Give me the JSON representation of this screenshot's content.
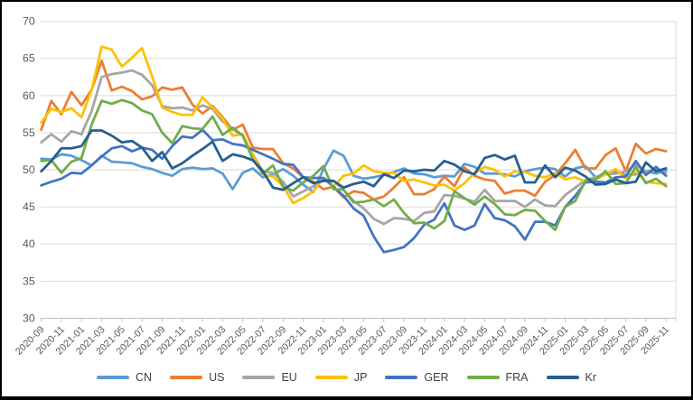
{
  "window": {
    "background_color": "#FFFFFF",
    "frame_border_color": "#000000"
  },
  "axis_style": {
    "grid_color": "#D9D9D9",
    "axis_line_color": "#BFBFBF",
    "axis_label_color": "#595959",
    "legend_text_color": "#404040"
  },
  "chart_data": {
    "type": "line",
    "title": "",
    "xlabel": "",
    "ylabel": "",
    "grid": true,
    "legend_position": "bottom",
    "y_axis": {
      "min": 30,
      "max": 70,
      "step": 5,
      "tick_labels": [
        "30",
        "35",
        "40",
        "45",
        "50",
        "55",
        "60",
        "65",
        "70"
      ]
    },
    "x": [
      "2020-09",
      "2020-10",
      "2020-11",
      "2020-12",
      "2021-01",
      "2021-02",
      "2021-03",
      "2021-04",
      "2021-05",
      "2021-06",
      "2021-07",
      "2021-08",
      "2021-09",
      "2021-10",
      "2021-11",
      "2021-12",
      "2022-01",
      "2022-02",
      "2022-03",
      "2022-04",
      "2022-05",
      "2022-06",
      "2022-07",
      "2022-08",
      "2022-09",
      "2022-10",
      "2022-11",
      "2022-12",
      "2023-01",
      "2023-02",
      "2023-03",
      "2023-04",
      "2023-05",
      "2023-06",
      "2023-07",
      "2023-08",
      "2023-09",
      "2023-10",
      "2023-11",
      "2023-12",
      "2024-01",
      "2024-02",
      "2024-03",
      "2024-04",
      "2024-05",
      "2024-06",
      "2024-07",
      "2024-08",
      "2024-09",
      "2024-10",
      "2024-11",
      "2024-12",
      "2025-01",
      "2025-02",
      "2025-03",
      "2025-04",
      "2025-05",
      "2025-06",
      "2025-07",
      "2025-08",
      "2025-09",
      "2025-10",
      "2025-11"
    ],
    "x_tick_labels": [
      "2020-09",
      "2020-11",
      "2021-01",
      "2021-03",
      "2021-05",
      "2021-07",
      "2021-09",
      "2021-11",
      "2022-01",
      "2022-03",
      "2022-05",
      "2022-07",
      "2022-09",
      "2022-11",
      "2023-01",
      "2023-03",
      "2023-05",
      "2023-07",
      "2023-09",
      "2023-11",
      "2024-01",
      "2024-03",
      "2024-05",
      "2024-07",
      "2024-09",
      "2024-11",
      "2025-01",
      "2025-03",
      "2025-05",
      "2025-07",
      "2025-09",
      "2025-11"
    ],
    "series": [
      {
        "name": "CN",
        "color": "#5B9BD5",
        "values": [
          51.5,
          51.4,
          52.1,
          51.9,
          51.3,
          50.6,
          51.9,
          51.1,
          51.0,
          50.9,
          50.4,
          50.1,
          49.6,
          49.2,
          50.1,
          50.3,
          50.1,
          50.2,
          49.5,
          47.4,
          49.6,
          50.2,
          49.0,
          49.4,
          50.1,
          49.2,
          48.0,
          47.0,
          50.1,
          52.6,
          51.9,
          49.2,
          48.8,
          49.0,
          49.3,
          49.7,
          50.2,
          49.5,
          49.4,
          49.0,
          49.2,
          49.1,
          50.8,
          50.4,
          49.5,
          49.5,
          49.4,
          49.1,
          49.8,
          50.1,
          50.3,
          50.1,
          49.1,
          50.2,
          50.5,
          49.0,
          49.5,
          49.7,
          49.3,
          49.4,
          49.8,
          49.5,
          49.9
        ]
      },
      {
        "name": "US",
        "color": "#ED7D31",
        "values": [
          55.4,
          59.3,
          57.5,
          60.5,
          58.7,
          60.8,
          64.7,
          60.7,
          61.2,
          60.6,
          59.5,
          59.9,
          61.1,
          60.8,
          61.1,
          58.8,
          57.6,
          58.6,
          57.1,
          55.4,
          56.1,
          53.0,
          52.8,
          52.8,
          50.9,
          50.2,
          49.0,
          48.4,
          47.4,
          47.7,
          46.3,
          47.1,
          46.9,
          46.0,
          46.4,
          47.6,
          49.0,
          46.7,
          46.7,
          47.4,
          49.1,
          47.8,
          50.3,
          49.2,
          48.7,
          48.5,
          46.8,
          47.2,
          47.2,
          46.5,
          48.4,
          49.3,
          50.9,
          52.7,
          50.2,
          50.2,
          52.0,
          52.9,
          49.8,
          53.5,
          52.2,
          52.8,
          52.5
        ]
      },
      {
        "name": "EU",
        "color": "#A5A5A5",
        "values": [
          53.7,
          54.8,
          53.8,
          55.2,
          54.8,
          57.9,
          62.5,
          62.9,
          63.1,
          63.4,
          62.8,
          61.4,
          58.6,
          58.3,
          58.4,
          58.0,
          58.7,
          58.2,
          56.5,
          55.5,
          54.6,
          52.1,
          49.8,
          49.6,
          48.4,
          46.4,
          47.1,
          47.8,
          48.8,
          48.5,
          47.3,
          45.8,
          44.8,
          43.4,
          42.7,
          43.5,
          43.4,
          43.1,
          44.2,
          44.4,
          46.6,
          46.5,
          46.1,
          45.7,
          47.3,
          45.8,
          45.8,
          45.8,
          45.0,
          46.0,
          45.2,
          45.1,
          46.6,
          47.6,
          48.6,
          49.0,
          49.4,
          49.5,
          49.8,
          50.7,
          49.8,
          50.0,
          49.6
        ]
      },
      {
        "name": "JP",
        "color": "#FFC000",
        "values": [
          56.4,
          58.2,
          57.8,
          58.3,
          57.1,
          60.7,
          66.6,
          66.2,
          63.9,
          65.1,
          66.4,
          62.6,
          58.4,
          57.8,
          57.4,
          57.4,
          59.8,
          58.4,
          56.9,
          54.6,
          54.8,
          52.0,
          49.3,
          49.1,
          47.8,
          45.5,
          46.2,
          47.1,
          48.9,
          47.7,
          49.2,
          49.5,
          50.6,
          49.8,
          49.6,
          49.6,
          48.5,
          48.7,
          48.3,
          47.9,
          48.0,
          47.2,
          48.2,
          49.6,
          50.4,
          50.0,
          49.1,
          49.8,
          49.7,
          49.2,
          49.0,
          49.6,
          48.7,
          49.0,
          48.4,
          48.7,
          49.4,
          50.1,
          48.9,
          49.7,
          48.4,
          48.2,
          48.1
        ]
      },
      {
        "name": "GER",
        "color": "#4472C4",
        "values": [
          47.9,
          48.4,
          48.8,
          49.6,
          49.5,
          50.6,
          51.8,
          52.9,
          53.2,
          52.5,
          53.0,
          52.7,
          51.5,
          53.2,
          54.5,
          54.3,
          55.4,
          54.0,
          54.1,
          53.5,
          53.3,
          52.7,
          52.1,
          51.5,
          50.8,
          50.7,
          49.0,
          48.9,
          48.9,
          47.7,
          46.5,
          44.8,
          43.8,
          41.0,
          38.9,
          39.2,
          39.6,
          40.8,
          42.6,
          43.3,
          45.5,
          42.5,
          41.9,
          42.5,
          45.4,
          43.5,
          43.2,
          42.4,
          40.6,
          43.0,
          43.0,
          42.5,
          45.0,
          46.5,
          48.3,
          48.4,
          48.3,
          49.0,
          49.1,
          51.2,
          49.3,
          50.4,
          49.2
        ]
      },
      {
        "name": "FRA",
        "color": "#70AD47",
        "values": [
          51.2,
          51.3,
          49.6,
          51.1,
          51.6,
          56.1,
          59.3,
          58.9,
          59.4,
          59.0,
          58.0,
          57.5,
          55.0,
          53.6,
          55.9,
          55.6,
          55.5,
          57.2,
          54.7,
          55.7,
          54.6,
          51.4,
          49.5,
          50.6,
          47.7,
          47.2,
          48.3,
          49.2,
          50.5,
          47.4,
          47.3,
          45.6,
          45.7,
          46.0,
          45.1,
          46.0,
          44.2,
          42.8,
          42.9,
          42.1,
          43.1,
          47.1,
          46.2,
          45.3,
          46.4,
          45.4,
          44.0,
          43.9,
          44.6,
          44.5,
          43.1,
          41.9,
          45.0,
          45.8,
          48.5,
          48.7,
          49.8,
          48.1,
          48.2,
          50.4,
          48.2,
          48.8,
          47.8
        ]
      },
      {
        "name": "Kr",
        "color": "#255E91",
        "values": [
          49.8,
          51.2,
          52.9,
          52.9,
          53.2,
          55.3,
          55.3,
          54.6,
          53.7,
          53.9,
          53.0,
          51.2,
          52.4,
          50.2,
          50.9,
          51.9,
          52.8,
          53.8,
          51.2,
          52.1,
          51.8,
          51.3,
          49.8,
          47.6,
          47.3,
          48.2,
          49.0,
          48.2,
          48.5,
          48.5,
          47.6,
          48.1,
          48.4,
          47.8,
          49.4,
          48.9,
          49.9,
          49.8,
          50.0,
          49.9,
          51.2,
          50.7,
          49.8,
          49.4,
          51.6,
          52.0,
          51.4,
          51.9,
          48.3,
          48.3,
          50.6,
          49.0,
          50.3,
          49.9,
          49.1,
          48.0,
          48.1,
          48.7,
          48.2,
          48.4,
          51.0,
          49.8,
          50.2
        ]
      }
    ]
  },
  "legend": {
    "items": [
      {
        "label": "CN",
        "color": "#5B9BD5"
      },
      {
        "label": "US",
        "color": "#ED7D31"
      },
      {
        "label": "EU",
        "color": "#A5A5A5"
      },
      {
        "label": "JP",
        "color": "#FFC000"
      },
      {
        "label": "GER",
        "color": "#4472C4"
      },
      {
        "label": "FRA",
        "color": "#70AD47"
      },
      {
        "label": "Kr",
        "color": "#255E91"
      }
    ]
  }
}
